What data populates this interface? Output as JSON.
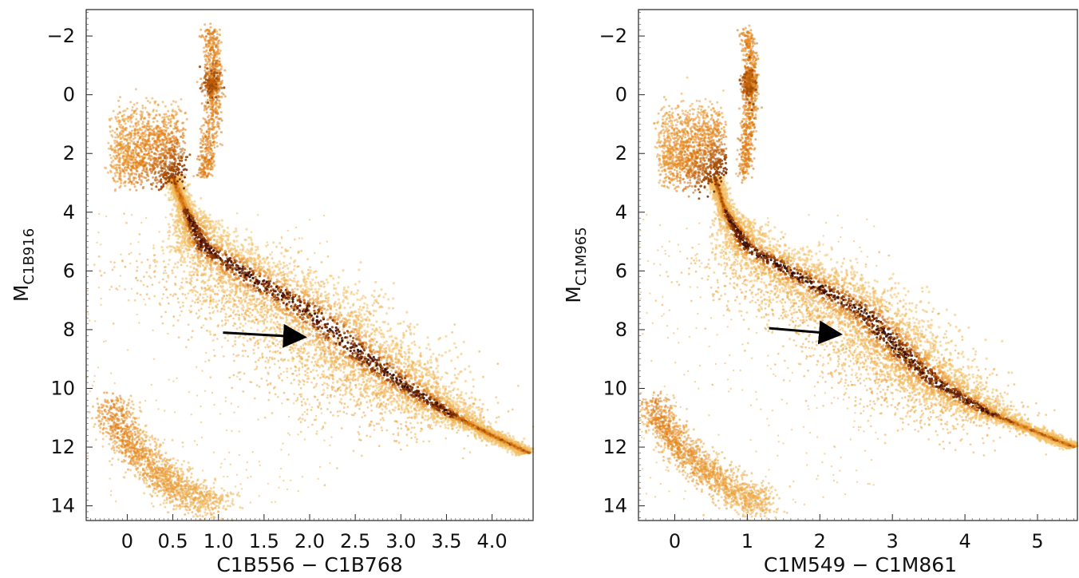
{
  "colors": {
    "low": "#f2c066",
    "mid": "#e07a0c",
    "high": "#5a1404",
    "core": "#140302",
    "frame": "#222222",
    "arrow": "#000000"
  },
  "chart_data": [
    {
      "type": "scatter",
      "panel": "left",
      "xlabel": "C1B556 − C1B768",
      "ylabel_main": "M",
      "ylabel_sub": "C1B916",
      "xlim": [
        -0.45,
        4.45
      ],
      "ylim": [
        14.5,
        -2.9
      ],
      "y_inverted": true,
      "xticks": [
        0,
        0.5,
        1.0,
        1.5,
        2.0,
        2.5,
        3.0,
        3.5,
        4.0
      ],
      "xtick_labels": [
        "0",
        "0.5",
        "1.0",
        "1.5",
        "2.0",
        "2.5",
        "3.0",
        "3.5",
        "4.0"
      ],
      "yticks": [
        -2,
        0,
        2,
        4,
        6,
        8,
        10,
        12,
        14
      ],
      "ytick_labels": [
        "−2",
        "0",
        "2",
        "4",
        "6",
        "8",
        "10",
        "12",
        "14"
      ],
      "grid": false,
      "style": "density-colored scatter (Hess diagram)",
      "main_sequence": {
        "points": [
          [
            0.5,
            2.8
          ],
          [
            0.65,
            4.0
          ],
          [
            0.85,
            5.2
          ],
          [
            1.4,
            6.3
          ],
          [
            2.0,
            7.4
          ],
          [
            2.5,
            8.7
          ],
          [
            3.0,
            9.8
          ],
          [
            3.5,
            10.8
          ],
          [
            4.0,
            11.6
          ],
          [
            4.4,
            12.2
          ]
        ]
      },
      "turnoff_region": {
        "x": [
          -0.15,
          0.6
        ],
        "y": [
          0.5,
          2.8
        ]
      },
      "red_giant_branch": {
        "points": [
          [
            0.85,
            2.8
          ],
          [
            0.9,
            1.5
          ],
          [
            0.95,
            0.2
          ],
          [
            0.95,
            -1.0
          ],
          [
            0.9,
            -2.2
          ]
        ]
      },
      "red_clump": {
        "x": 0.92,
        "y": -0.4
      },
      "white_dwarf_sequence": {
        "points": [
          [
            -0.2,
            10.6
          ],
          [
            0.0,
            11.8
          ],
          [
            0.3,
            12.8
          ],
          [
            0.6,
            13.5
          ],
          [
            1.0,
            14.0
          ]
        ]
      },
      "arrow": {
        "from": [
          1.05,
          8.1
        ],
        "to": [
          1.92,
          8.25
        ]
      }
    },
    {
      "type": "scatter",
      "panel": "right",
      "xlabel": "C1M549 − C1M861",
      "ylabel_main": "M",
      "ylabel_sub": "C1M965",
      "xlim": [
        -0.5,
        5.55
      ],
      "ylim": [
        14.5,
        -2.9
      ],
      "y_inverted": true,
      "xticks": [
        0,
        1,
        2,
        3,
        4,
        5
      ],
      "xtick_labels": [
        "0",
        "1",
        "2",
        "3",
        "4",
        "5"
      ],
      "yticks": [
        -2,
        0,
        2,
        4,
        6,
        8,
        10,
        12,
        14
      ],
      "ytick_labels": [
        "−2",
        "0",
        "2",
        "4",
        "6",
        "8",
        "10",
        "12",
        "14"
      ],
      "grid": false,
      "style": "density-colored scatter (Hess diagram)",
      "main_sequence": {
        "points": [
          [
            0.55,
            2.8
          ],
          [
            0.7,
            4.0
          ],
          [
            1.0,
            5.2
          ],
          [
            1.8,
            6.3
          ],
          [
            2.6,
            7.4
          ],
          [
            3.1,
            8.7
          ],
          [
            3.6,
            9.8
          ],
          [
            4.3,
            10.8
          ],
          [
            5.0,
            11.5
          ],
          [
            5.5,
            12.0
          ]
        ]
      },
      "turnoff_region": {
        "x": [
          -0.2,
          0.65
        ],
        "y": [
          0.5,
          2.8
        ]
      },
      "red_giant_branch": {
        "points": [
          [
            0.95,
            2.8
          ],
          [
            1.0,
            1.5
          ],
          [
            1.05,
            0.2
          ],
          [
            1.05,
            -1.0
          ],
          [
            1.0,
            -2.2
          ]
        ]
      },
      "red_clump": {
        "x": 1.02,
        "y": -0.4
      },
      "white_dwarf_sequence": {
        "points": [
          [
            -0.3,
            10.6
          ],
          [
            0.0,
            11.8
          ],
          [
            0.4,
            12.8
          ],
          [
            0.8,
            13.5
          ],
          [
            1.3,
            14.0
          ]
        ]
      },
      "arrow": {
        "from": [
          1.3,
          7.95
        ],
        "to": [
          2.25,
          8.15
        ]
      }
    }
  ]
}
